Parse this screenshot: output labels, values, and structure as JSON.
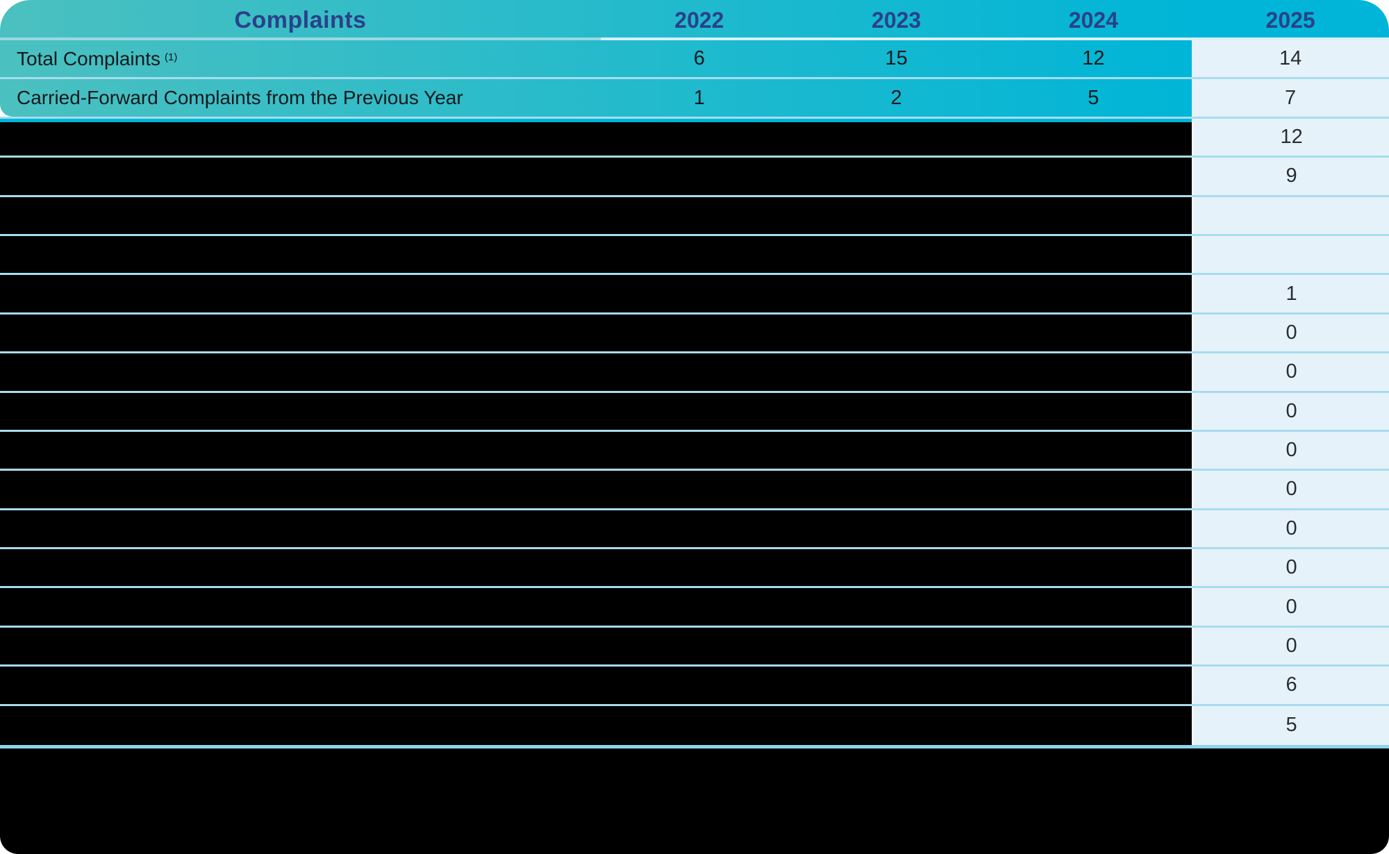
{
  "header": {
    "title": "Complaints",
    "years": [
      "2022",
      "2023",
      "2024",
      "2025"
    ]
  },
  "rows": [
    {
      "label": "Total Complaints",
      "footnote_marker": "(1)",
      "values_2022_2024": [
        "6",
        "15",
        "12"
      ],
      "value_2025": "14",
      "redacted": false
    },
    {
      "label": "Carried-Forward Complaints from the Previous Year",
      "footnote_marker": "",
      "values_2022_2024": [
        "1",
        "2",
        "5"
      ],
      "value_2025": "7",
      "redacted": false
    },
    {
      "label": "",
      "footnote_marker": "",
      "values_2022_2024": [
        "",
        "",
        ""
      ],
      "value_2025": "12",
      "redacted": true
    },
    {
      "label": "",
      "footnote_marker": "",
      "values_2022_2024": [
        "",
        "",
        ""
      ],
      "value_2025": "9",
      "redacted": true
    },
    {
      "label": "",
      "footnote_marker": "",
      "values_2022_2024": [
        "",
        "",
        ""
      ],
      "value_2025": "",
      "redacted": true
    },
    {
      "label": "",
      "footnote_marker": "",
      "values_2022_2024": [
        "",
        "",
        ""
      ],
      "value_2025": "",
      "redacted": true
    },
    {
      "label": "",
      "footnote_marker": "",
      "values_2022_2024": [
        "",
        "",
        ""
      ],
      "value_2025": "1",
      "redacted": true
    },
    {
      "label": "",
      "footnote_marker": "",
      "values_2022_2024": [
        "",
        "",
        ""
      ],
      "value_2025": "0",
      "redacted": true
    },
    {
      "label": "",
      "footnote_marker": "",
      "values_2022_2024": [
        "",
        "",
        ""
      ],
      "value_2025": "0",
      "redacted": true
    },
    {
      "label": "",
      "footnote_marker": "",
      "values_2022_2024": [
        "",
        "",
        ""
      ],
      "value_2025": "0",
      "redacted": true
    },
    {
      "label": "",
      "footnote_marker": "",
      "values_2022_2024": [
        "",
        "",
        ""
      ],
      "value_2025": "0",
      "redacted": true
    },
    {
      "label": "",
      "footnote_marker": "",
      "values_2022_2024": [
        "",
        "",
        ""
      ],
      "value_2025": "0",
      "redacted": true
    },
    {
      "label": "",
      "footnote_marker": "",
      "values_2022_2024": [
        "",
        "",
        ""
      ],
      "value_2025": "0",
      "redacted": true
    },
    {
      "label": "",
      "footnote_marker": "",
      "values_2022_2024": [
        "",
        "",
        ""
      ],
      "value_2025": "0",
      "redacted": true
    },
    {
      "label": "",
      "footnote_marker": "",
      "values_2022_2024": [
        "",
        "",
        ""
      ],
      "value_2025": "0",
      "redacted": true
    },
    {
      "label": "",
      "footnote_marker": "",
      "values_2022_2024": [
        "",
        "",
        ""
      ],
      "value_2025": "0",
      "redacted": true
    },
    {
      "label": "",
      "footnote_marker": "",
      "values_2022_2024": [
        "",
        "",
        ""
      ],
      "value_2025": "6",
      "redacted": true
    },
    {
      "label": "",
      "footnote_marker": "",
      "values_2022_2024": [
        "",
        "",
        ""
      ],
      "value_2025": "5",
      "redacted": true
    }
  ],
  "colors": {
    "teal-left": "#4bc0c0",
    "cyan-right": "#00b5d7",
    "navy": "#2a4189",
    "light-cell": "#e6f2f9",
    "divider": "#a8dcee",
    "thick-line": "#8fd2ec",
    "redaction": "#000000"
  }
}
